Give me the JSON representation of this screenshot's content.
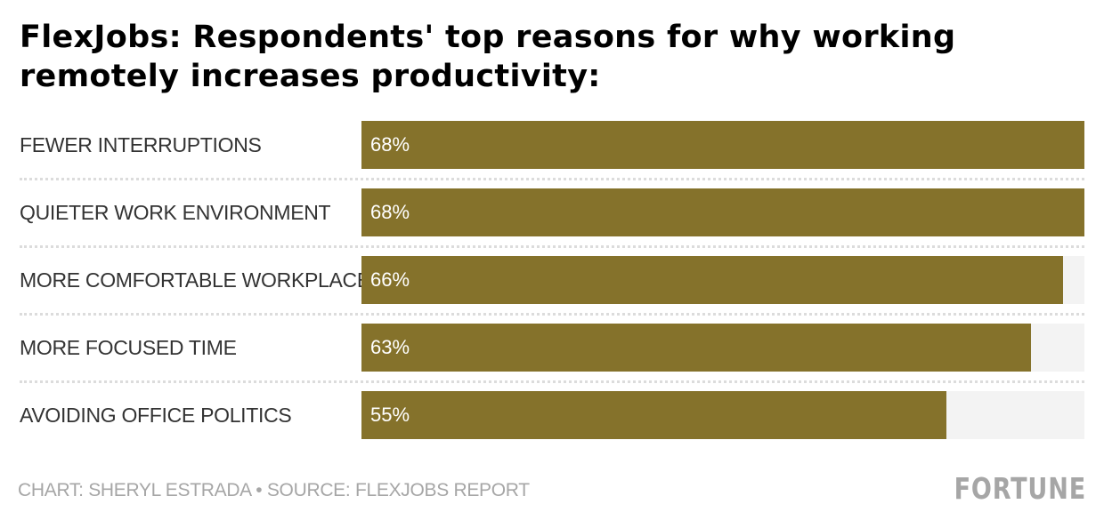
{
  "title": "FlexJobs: Respondents' top reasons for why working remotely increases productivity:",
  "colors": {
    "bar": "#85722b",
    "track": "#f3f3f3"
  },
  "footer": {
    "credit": "CHART: SHERYL ESTRADA • SOURCE: FLEXJOBS REPORT",
    "logo": "FORTUNE"
  },
  "chart_data": {
    "type": "bar",
    "orientation": "horizontal",
    "title": "FlexJobs: Respondents' top reasons for why working remotely increases productivity:",
    "xlabel": "",
    "ylabel": "",
    "xlim": [
      0,
      68
    ],
    "grid": false,
    "legend": "none",
    "categories": [
      "FEWER INTERRUPTIONS",
      "QUIETER WORK ENVIRONMENT",
      "MORE COMFORTABLE WORKPLACE",
      "MORE FOCUSED TIME",
      "AVOIDING OFFICE POLITICS"
    ],
    "values": [
      68,
      68,
      66,
      63,
      55
    ],
    "value_labels": [
      "68%",
      "68%",
      "66%",
      "63%",
      "55%"
    ]
  }
}
